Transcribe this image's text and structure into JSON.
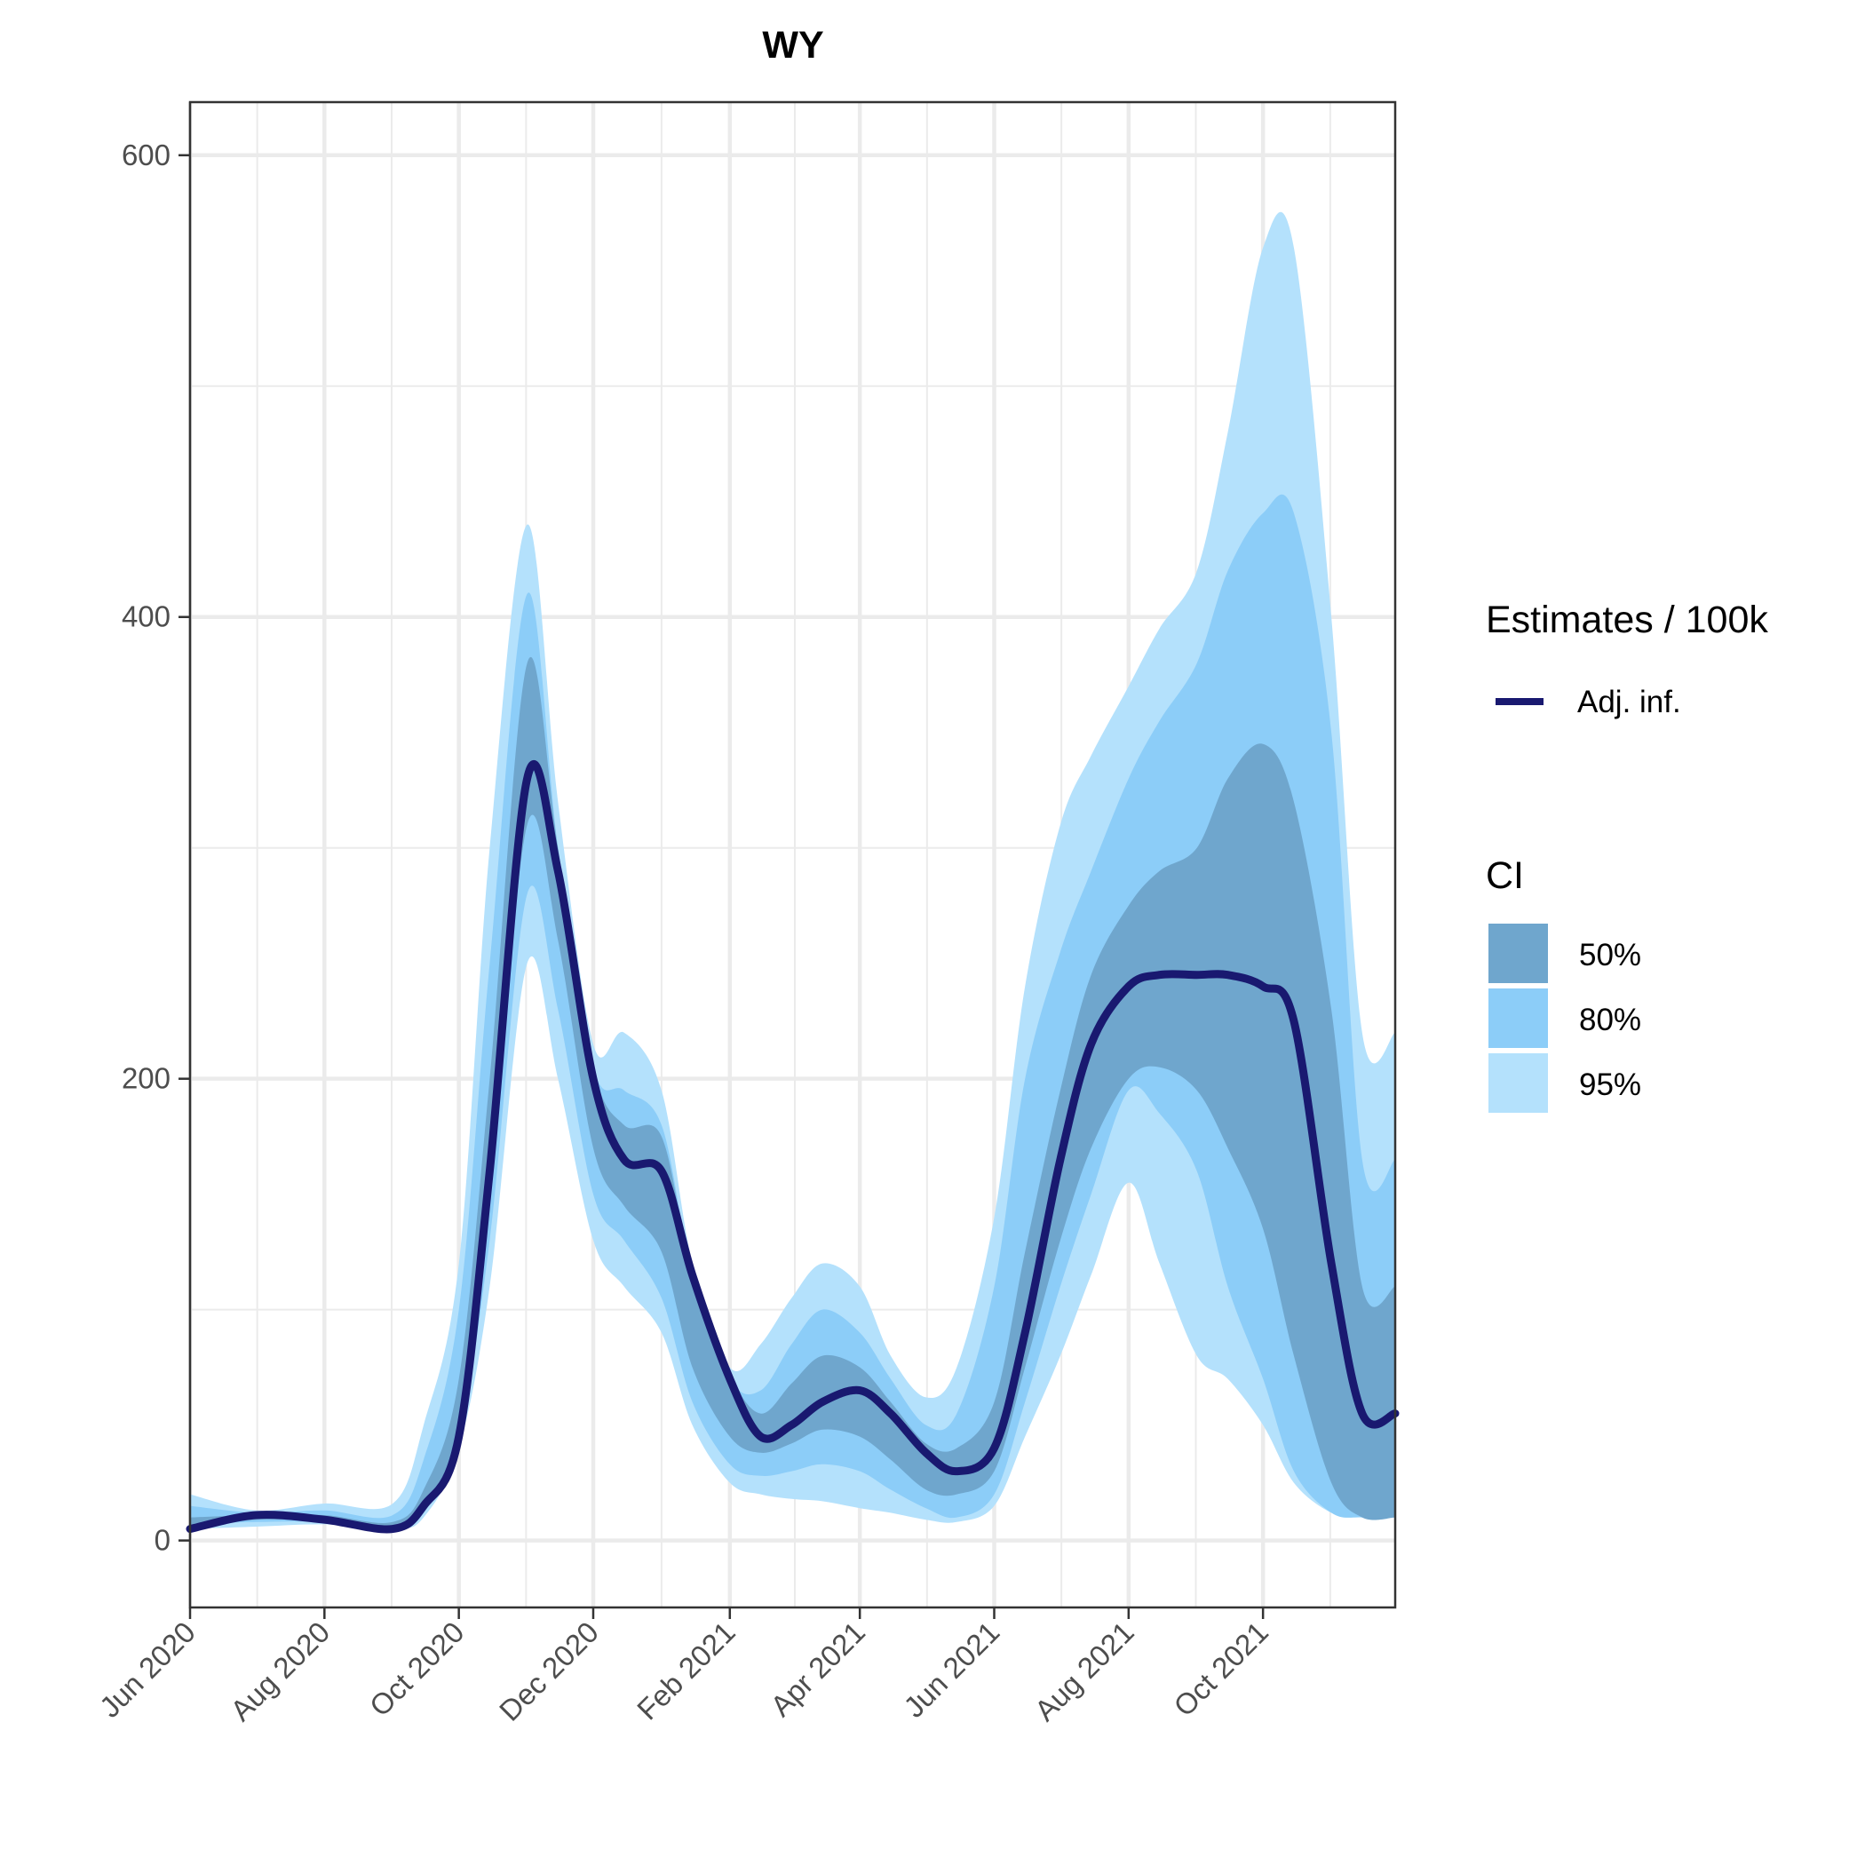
{
  "chart_data": {
    "type": "line",
    "title": "WY",
    "xlabel": "",
    "ylabel": "",
    "x_range": [
      "2020-06-01",
      "2021-11-30"
    ],
    "ylim": [
      -29,
      623
    ],
    "y_ticks": [
      0,
      200,
      400,
      600
    ],
    "y_tick_labels": [
      "0",
      "200",
      "400",
      "600"
    ],
    "x_ticks": [
      "2020-06-01",
      "2020-08-01",
      "2020-10-01",
      "2020-12-01",
      "2021-02-01",
      "2021-04-01",
      "2021-06-01",
      "2021-08-01",
      "2021-10-01"
    ],
    "x_tick_labels": [
      "Jun 2020",
      "Aug 2020",
      "Oct 2020",
      "Dec 2020",
      "Feb 2021",
      "Apr 2021",
      "Jun 2021",
      "Aug 2021",
      "Oct 2021"
    ],
    "grid": true,
    "legend": {
      "placement": "right",
      "line_title": "Estimates / 100k",
      "line_label": "Adj. inf.",
      "band_title": "CI",
      "band_labels": [
        "50%",
        "80%",
        "95%"
      ]
    },
    "colors": {
      "line": "#191970",
      "ci50": "#6fa6cd",
      "ci80": "#8ccdf8",
      "ci95": "#b4e1fc",
      "grid": "#ebebeb",
      "panel_border": "#333333"
    },
    "x": [
      "2020-06-01",
      "2020-07-01",
      "2020-08-01",
      "2020-09-01",
      "2020-09-15",
      "2020-10-01",
      "2020-10-15",
      "2020-11-01",
      "2020-11-15",
      "2020-12-01",
      "2020-12-15",
      "2021-01-01",
      "2021-01-15",
      "2021-02-01",
      "2021-02-15",
      "2021-03-01",
      "2021-03-15",
      "2021-04-01",
      "2021-04-15",
      "2021-05-01",
      "2021-05-15",
      "2021-06-01",
      "2021-06-15",
      "2021-07-01",
      "2021-07-15",
      "2021-08-01",
      "2021-08-15",
      "2021-09-01",
      "2021-09-15",
      "2021-10-01",
      "2021-10-15",
      "2021-11-01",
      "2021-11-15",
      "2021-11-30"
    ],
    "series": [
      {
        "name": "Adj. inf.",
        "values": [
          5,
          11,
          9,
          5,
          15,
          45,
          160,
          330,
          290,
          200,
          165,
          160,
          115,
          70,
          45,
          50,
          60,
          65,
          55,
          38,
          30,
          40,
          90,
          165,
          215,
          240,
          245,
          245,
          245,
          240,
          225,
          120,
          55,
          55
        ]
      }
    ],
    "bands": [
      {
        "name": "95%",
        "upper": [
          20,
          13,
          16,
          16,
          50,
          120,
          300,
          440,
          320,
          215,
          220,
          195,
          120,
          75,
          85,
          105,
          120,
          110,
          80,
          62,
          75,
          140,
          240,
          310,
          340,
          370,
          395,
          420,
          480,
          560,
          560,
          400,
          220,
          220
        ],
        "lower": [
          5,
          6,
          7,
          5,
          10,
          40,
          110,
          250,
          200,
          130,
          110,
          90,
          50,
          25,
          20,
          18,
          17,
          14,
          12,
          9,
          8,
          15,
          45,
          80,
          115,
          155,
          120,
          80,
          70,
          50,
          25,
          12,
          10,
          10
        ]
      },
      {
        "name": "80%",
        "upper": [
          15,
          12,
          13,
          11,
          35,
          100,
          250,
          410,
          300,
          205,
          195,
          180,
          115,
          70,
          65,
          85,
          100,
          90,
          70,
          50,
          55,
          110,
          200,
          255,
          290,
          330,
          355,
          380,
          420,
          445,
          445,
          350,
          165,
          165
        ],
        "lower": [
          7,
          8,
          8,
          6,
          12,
          45,
          130,
          280,
          230,
          150,
          130,
          105,
          60,
          33,
          28,
          30,
          33,
          30,
          22,
          14,
          10,
          20,
          60,
          110,
          150,
          195,
          185,
          160,
          110,
          70,
          30,
          12,
          10,
          10
        ]
      },
      {
        "name": "50%",
        "upper": [
          10,
          11,
          11,
          8,
          22,
          70,
          200,
          380,
          300,
          205,
          180,
          175,
          115,
          72,
          55,
          68,
          80,
          75,
          60,
          42,
          40,
          60,
          125,
          195,
          245,
          275,
          290,
          300,
          330,
          345,
          320,
          230,
          110,
          110
        ],
        "lower": [
          5,
          9,
          8,
          5,
          12,
          45,
          150,
          310,
          260,
          170,
          145,
          125,
          75,
          45,
          38,
          42,
          48,
          45,
          35,
          22,
          20,
          30,
          75,
          130,
          170,
          200,
          205,
          195,
          170,
          135,
          80,
          25,
          10,
          10
        ]
      }
    ]
  }
}
